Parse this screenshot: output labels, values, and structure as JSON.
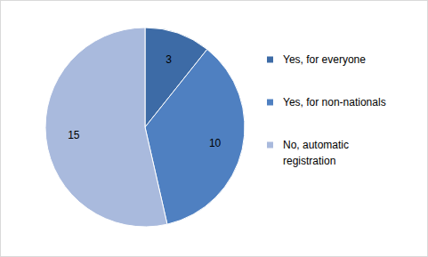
{
  "chart_data": {
    "type": "pie",
    "categories": [
      "Yes, for everyone",
      "Yes, for non-nationals",
      "No, automatic registration"
    ],
    "values": [
      3,
      10,
      15
    ],
    "colors": [
      "#3d6ba6",
      "#4f80c1",
      "#a9badd"
    ],
    "data_labels": true,
    "legend": "right"
  }
}
